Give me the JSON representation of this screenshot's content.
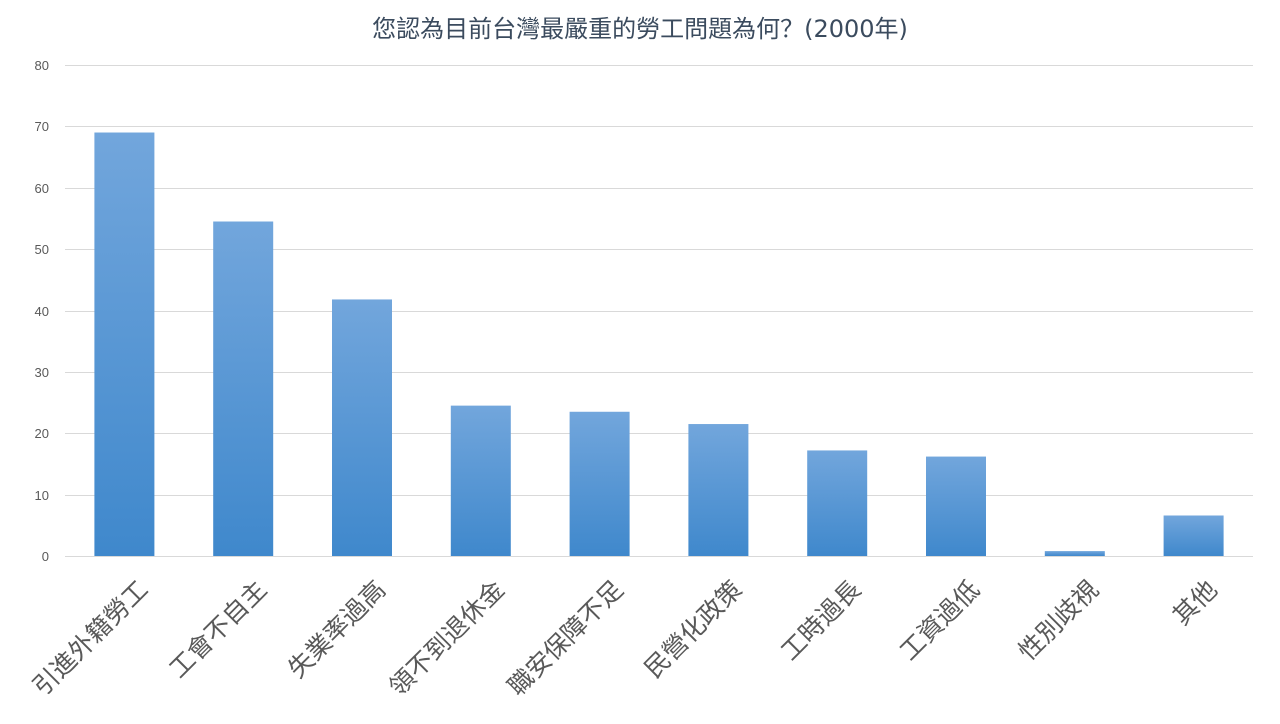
{
  "chart_data": {
    "type": "bar",
    "title": "您認為目前台灣最嚴重的勞工問題為何？(2000年)",
    "xlabel": "",
    "ylabel": "",
    "ylim": [
      0,
      80
    ],
    "yticks": [
      0,
      10,
      20,
      30,
      40,
      50,
      60,
      70,
      80
    ],
    "grid": true,
    "legend": "none",
    "bar_color_top": "#72a6dc",
    "bar_color_bottom": "#3f88cc",
    "categories": [
      "引進外籍勞工",
      "工會不自主",
      "失業率過高",
      "領不到退休金",
      "職安保障不足",
      "民營化政策",
      "工時過長",
      "工資過低",
      "性別歧視",
      "其他"
    ],
    "values": [
      69,
      54.5,
      41.8,
      24.5,
      23.5,
      21.5,
      17.2,
      16.2,
      0.8,
      6.6
    ]
  }
}
